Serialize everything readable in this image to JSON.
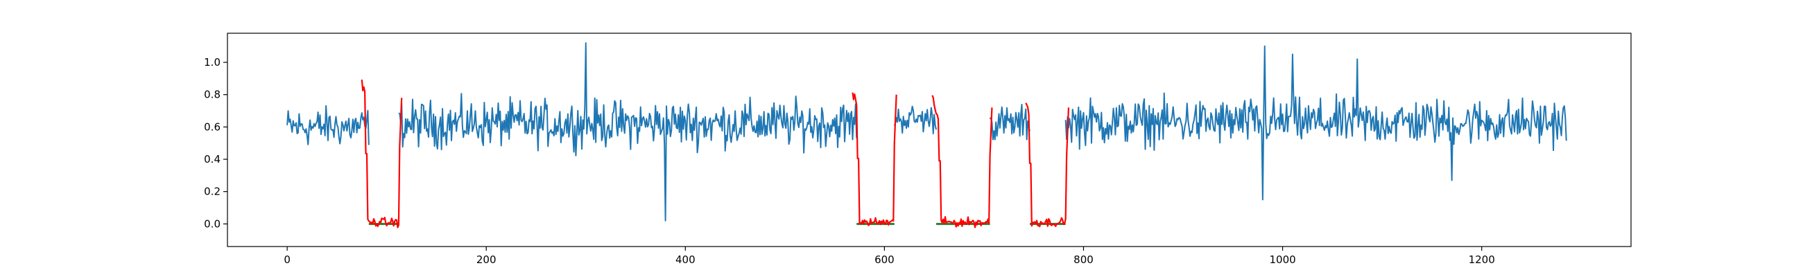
{
  "chart_data": {
    "type": "line",
    "title": "",
    "xlabel": "",
    "ylabel": "",
    "xlim": [
      -60,
      1350
    ],
    "ylim": [
      -0.14,
      1.18
    ],
    "xticks": [
      0,
      200,
      400,
      600,
      800,
      1000,
      1200
    ],
    "xtick_labels": [
      "0",
      "200",
      "400",
      "600",
      "800",
      "1000",
      "1200"
    ],
    "yticks": [
      0.0,
      0.2,
      0.4,
      0.6,
      0.8,
      1.0
    ],
    "ytick_labels": [
      "0.0",
      "0.2",
      "0.4",
      "0.6",
      "0.8",
      "1.0"
    ],
    "grid": false,
    "legend": "none",
    "series": [
      {
        "color": "#1f77b4",
        "role": "signal",
        "segments": [
          {
            "x_start": 0,
            "x_end": 82,
            "base": 0.6,
            "noise": 0.11
          },
          {
            "x_start": 112,
            "x_end": 572,
            "base": 0.62,
            "noise": 0.13
          },
          {
            "x_start": 610,
            "x_end": 652,
            "base": 0.65,
            "noise": 0.08
          },
          {
            "x_start": 706,
            "x_end": 746,
            "base": 0.62,
            "noise": 0.1
          },
          {
            "x_start": 782,
            "x_end": 1285,
            "base": 0.63,
            "noise": 0.13
          }
        ],
        "spikes": [
          {
            "x": 300,
            "y": 1.12
          },
          {
            "x": 380,
            "y": 0.02
          },
          {
            "x": 980,
            "y": 0.15
          },
          {
            "x": 982,
            "y": 1.1
          },
          {
            "x": 1010,
            "y": 1.05
          },
          {
            "x": 1075,
            "y": 1.02
          },
          {
            "x": 1170,
            "y": 0.27
          }
        ]
      },
      {
        "color": "#ff0000",
        "role": "anomaly",
        "segments": [
          {
            "x_start": 75,
            "x_end": 115,
            "edge_high": 0.87,
            "exit_high": 0.78
          },
          {
            "x_start": 568,
            "x_end": 612,
            "edge_high": 0.81,
            "exit_high": 0.8
          },
          {
            "x_start": 648,
            "x_end": 708,
            "edge_high": 0.78,
            "exit_high": 0.72
          },
          {
            "x_start": 742,
            "x_end": 785,
            "edge_high": 0.75,
            "exit_high": 0.72
          }
        ]
      },
      {
        "color": "#2e7d32",
        "role": "baseline",
        "segments": [
          {
            "x_start": 82,
            "x_end": 112,
            "y": 0.0
          },
          {
            "x_start": 572,
            "x_end": 610,
            "y": 0.0
          },
          {
            "x_start": 652,
            "x_end": 706,
            "y": 0.0
          },
          {
            "x_start": 746,
            "x_end": 782,
            "y": 0.0
          }
        ]
      }
    ]
  }
}
